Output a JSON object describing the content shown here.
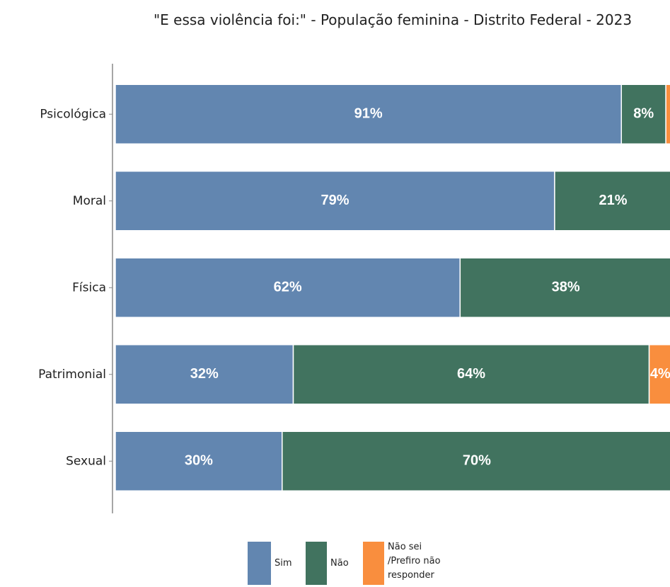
{
  "chart_data": {
    "type": "bar",
    "orientation": "horizontal",
    "stacked": true,
    "title": "\"E essa violência foi:\" - População feminina - Distrito Federal - 2023",
    "categories": [
      "Psicológica",
      "Moral",
      "Física",
      "Patrimonial",
      "Sexual"
    ],
    "xlim": [
      0,
      100
    ],
    "series": [
      {
        "name": "Sim",
        "color": "#6286b0",
        "values": [
          91,
          79,
          62,
          32,
          30
        ],
        "value_labels": [
          "91%",
          "79%",
          "62%",
          "32%",
          "30%"
        ]
      },
      {
        "name": "Não",
        "color": "#41735f",
        "values": [
          8,
          21,
          38,
          64,
          70
        ],
        "value_labels": [
          "8%",
          "21%",
          "38%",
          "64%",
          "70%"
        ]
      },
      {
        "name": "Não sei /Prefiro não responder",
        "color": "#f98e3e",
        "values": [
          1,
          0,
          0,
          4,
          0
        ],
        "value_labels": [
          null,
          null,
          null,
          "4%",
          null
        ]
      }
    ],
    "legend": "bottom"
  }
}
